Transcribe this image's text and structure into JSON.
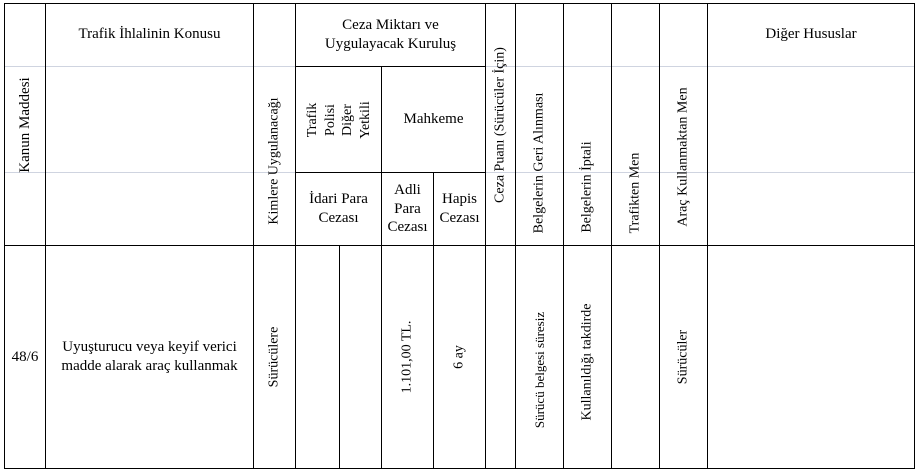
{
  "header": {
    "kanun_maddesi": "Kanun Maddesi",
    "ihlal_konusu": "Trafik İhlalinin Konusu",
    "kimlere": "Kimlere Uygulanacağı",
    "ceza_miktari": "Ceza Miktarı ve\nUygulayacak Kuruluş",
    "trafik_polisi": "Trafik Polisi\nDiğer Yetkili",
    "mahkeme": "Mahkeme",
    "idari_para": "İdari Para\nCezası",
    "adli_para": "Adli\nPara\nCezası",
    "hapis": "Hapis\nCezası",
    "ceza_puani": "Ceza Puanı (Sürücüler İçin)",
    "belge_geri": "Belgelerin Geri Alınması",
    "belge_iptal": "Belgelerin İptali",
    "trafikten_men": "Trafikten Men",
    "arac_men": "Araç Kullanmaktan Men",
    "diger": "Diğer Hususlar"
  },
  "rows": [
    {
      "madde": "48/6",
      "konu": "Uyuşturucu veya keyif verici\nmadde alarak araç kullanmak",
      "kimlere": "Sürücülere",
      "idari_para": "",
      "adli_para": "1.101,00 TL.",
      "hapis": "6 ay",
      "ceza_puani": "",
      "belge_geri": "Sürücü  belgesi süresiz",
      "belge_iptal": "Kullanıldığı takdirde",
      "trafikten_men": "",
      "arac_men": "Sürücüler",
      "diger": ""
    }
  ]
}
